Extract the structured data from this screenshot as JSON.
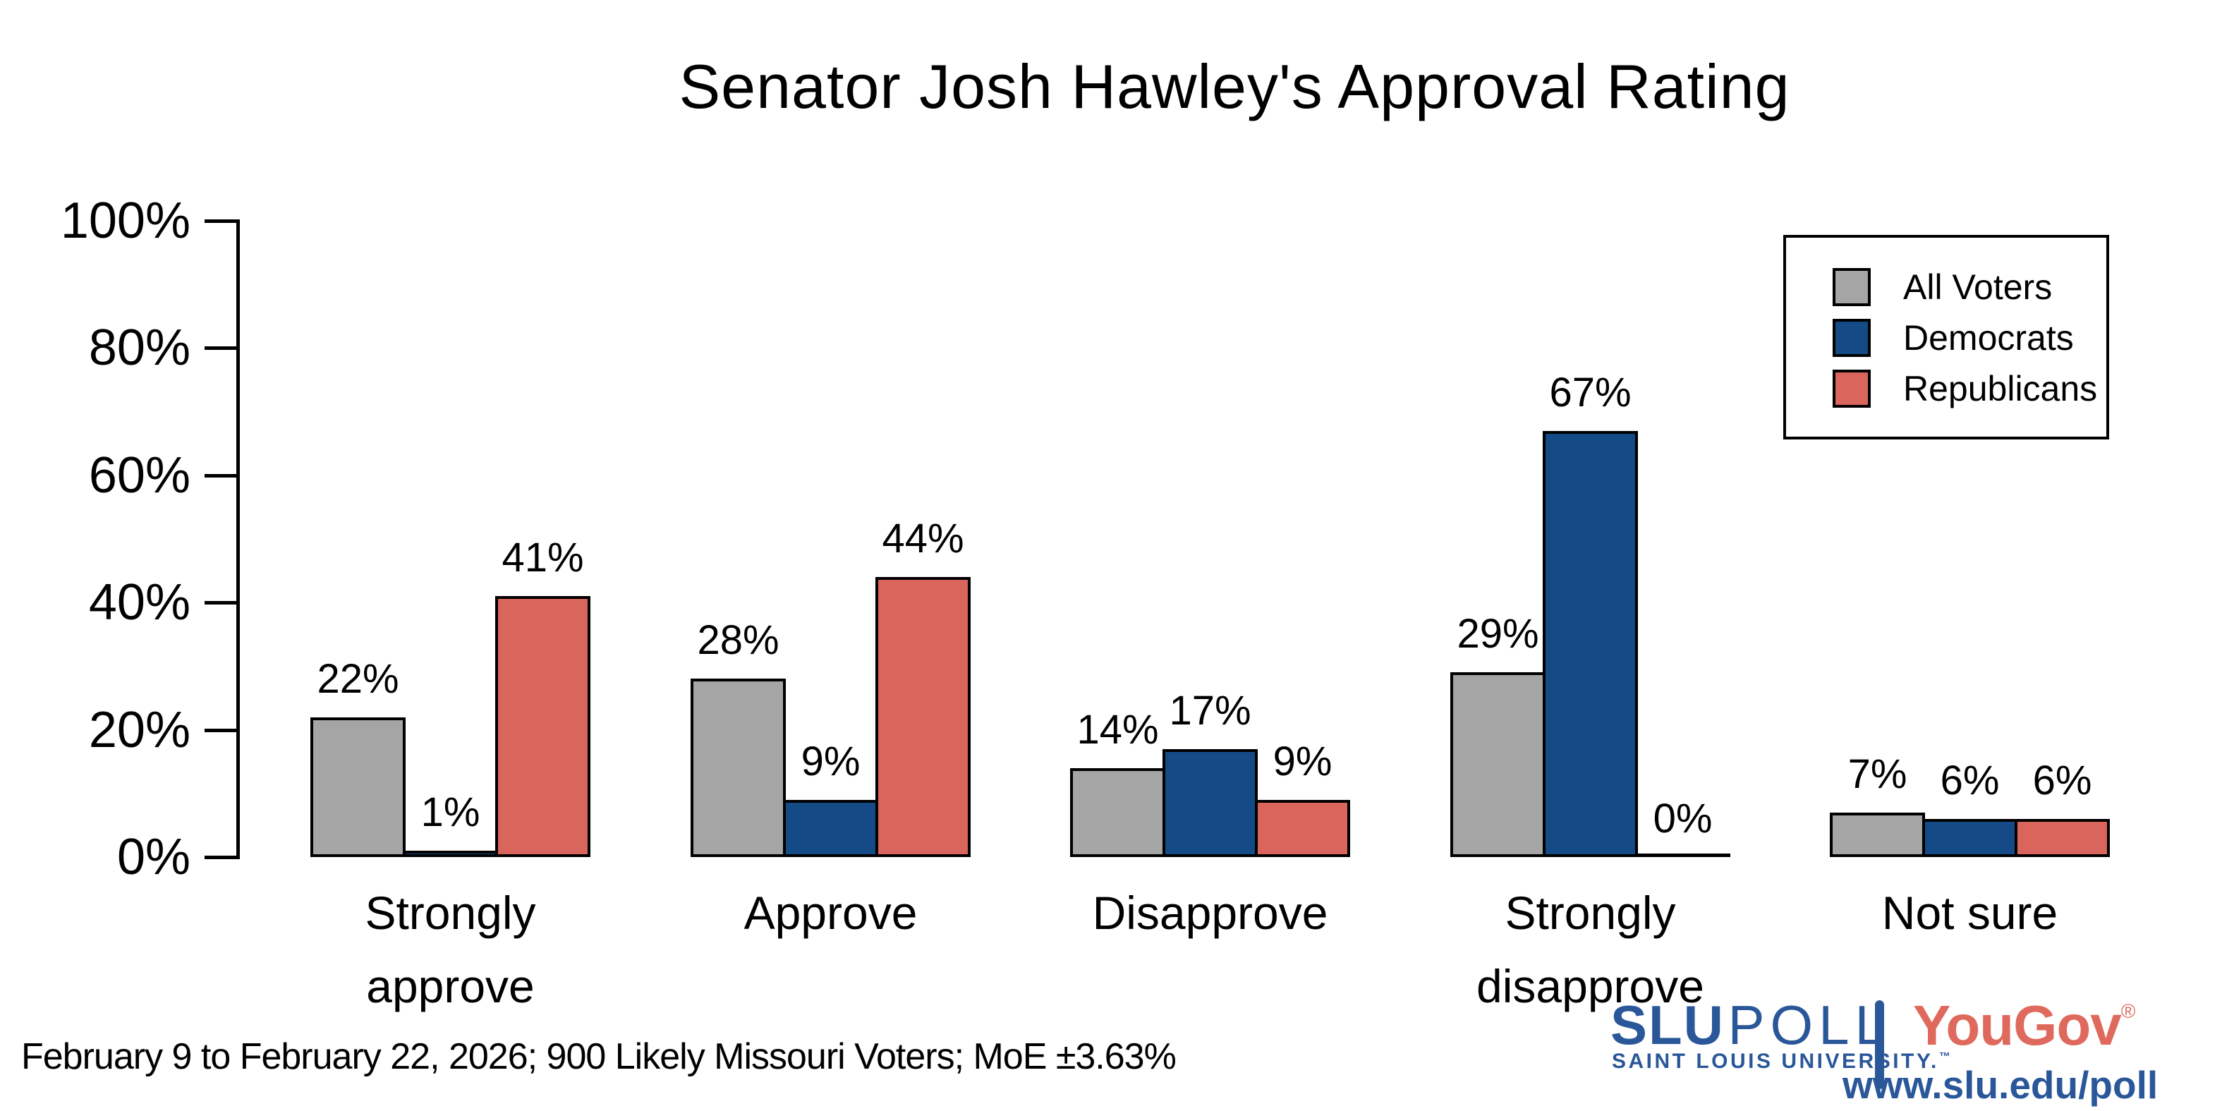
{
  "title": "Senator Josh Hawley's Approval Rating",
  "footnote": "February 9 to February 22, 2026; 900 Likely Missouri Voters; MoE ±3.63%",
  "y_axis": {
    "tick_labels": [
      "100%",
      "80%",
      "60%",
      "40%",
      "20%",
      "0%"
    ]
  },
  "chart_data": {
    "type": "bar",
    "title": "Senator Josh Hawley's Approval Rating",
    "categories": [
      "Strongly approve",
      "Approve",
      "Disapprove",
      "Strongly disapprove",
      "Not sure"
    ],
    "category_labels": [
      "Strongly\napprove",
      "Approve",
      "Disapprove",
      "Strongly\ndisapprove",
      "Not sure"
    ],
    "series": [
      {
        "name": "All Voters",
        "color": "#a5a5a5",
        "values": [
          22,
          28,
          14,
          29,
          7
        ]
      },
      {
        "name": "Democrats",
        "color": "#144b87",
        "values": [
          1,
          9,
          17,
          67,
          6
        ]
      },
      {
        "name": "Republicans",
        "color": "#d9655c",
        "values": [
          41,
          44,
          9,
          0,
          6
        ]
      }
    ],
    "data_label_format": "{v}%",
    "xlabel": "",
    "ylabel": "",
    "ylim": [
      0,
      100
    ],
    "ytick_step": 20,
    "grid": false,
    "legend_position": "top-right",
    "bar_outline_color": "#000000"
  },
  "branding": {
    "slu_bold": "SLU",
    "slu_light": "POLL",
    "slu_sub": "SAINT LOUIS UNIVERSITY.",
    "slu_tm": "™",
    "yougov": "YouGov",
    "yougov_reg": "®",
    "url": "www.slu.edu/poll",
    "slu_blue": "#2a5799",
    "yougov_red": "#e0695d"
  }
}
